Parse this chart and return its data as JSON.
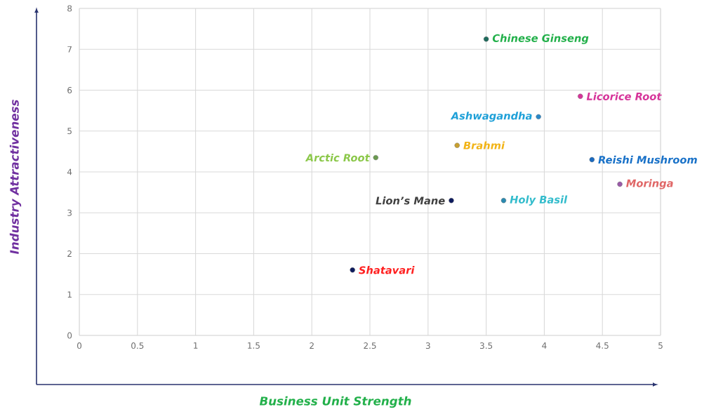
{
  "chart_data": {
    "type": "scatter",
    "xlabel": "Business Unit Strength",
    "ylabel": "Industry Attractiveness",
    "xlim": [
      0,
      5
    ],
    "xticks": [
      0,
      0.5,
      1,
      1.5,
      2,
      2.5,
      3,
      3.5,
      4,
      4.5,
      5
    ],
    "ylim": [
      0,
      8
    ],
    "yticks": [
      0,
      1,
      2,
      3,
      4,
      5,
      6,
      7,
      8
    ],
    "grid": true,
    "marker": "circle",
    "series": [
      {
        "name": "Chinese Ginseng",
        "color": "#1e6b5c",
        "x": [
          3.5
        ],
        "values": [
          7.25
        ]
      },
      {
        "name": "Licorice Root",
        "color": "#d6359a",
        "x": [
          4.31
        ],
        "values": [
          5.85
        ]
      },
      {
        "name": "Ashwagandha",
        "color": "#2a88c8",
        "x": [
          3.95
        ],
        "values": [
          5.35
        ]
      },
      {
        "name": "Brahmi",
        "color": "#c8a030",
        "x": [
          3.25
        ],
        "values": [
          4.65
        ]
      },
      {
        "name": "Arctic Root",
        "color": "#6a9a50",
        "x": [
          2.55
        ],
        "values": [
          4.35
        ]
      },
      {
        "name": "Reishi Mushroom",
        "color": "#1a6ac0",
        "x": [
          4.41
        ],
        "values": [
          4.3
        ]
      },
      {
        "name": "Moringa",
        "color": "#9a5aa8",
        "x": [
          4.65
        ],
        "values": [
          3.7
        ]
      },
      {
        "name": "Lion’s Mane",
        "color": "#0d1b5e",
        "x": [
          3.2
        ],
        "values": [
          3.3
        ]
      },
      {
        "name": "Holy Basil",
        "color": "#2a8ab0",
        "x": [
          3.65
        ],
        "values": [
          3.3
        ]
      },
      {
        "name": "Shatavari",
        "color": "#0d1b5e",
        "x": [
          2.35
        ],
        "values": [
          1.6
        ]
      }
    ]
  }
}
